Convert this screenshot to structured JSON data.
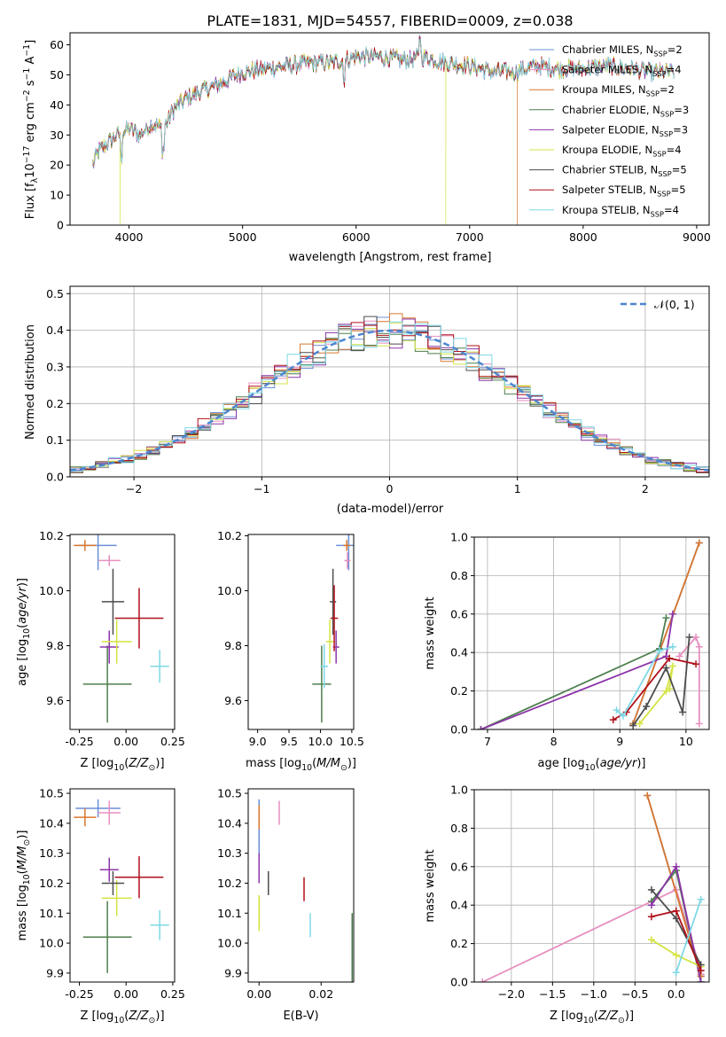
{
  "figure": {
    "title": "PLATE=1831, MJD=54557, FIBERID=0009, z=0.038"
  },
  "chart_data": [
    {
      "id": "spectrum",
      "type": "line",
      "xlabel": "wavelength [Angstrom, rest frame]",
      "ylabel": "Flux [f_λ 10^-17 erg cm^-2 s^-1 A^-1]",
      "xlim": [
        3480,
        9110
      ],
      "ylim": [
        0,
        64
      ],
      "xticks": [
        4000,
        5000,
        6000,
        7000,
        8000,
        9000
      ],
      "yticks": [
        0,
        10,
        20,
        30,
        40,
        50,
        60
      ],
      "grid": false,
      "legend_position": "upper-right",
      "colors": [
        "#6b8fd6",
        "#e78fbf",
        "#d9772e",
        "#4e7f4e",
        "#8c35a8",
        "#d4e342",
        "#4d4d4d",
        "#b0101a",
        "#7fd8e6"
      ],
      "series": [
        {
          "name": "Chabrier MILES, N_SSP=2"
        },
        {
          "name": "Salpeter MILES, N_SSP=4"
        },
        {
          "name": "Kroupa MILES, N_SSP=2",
          "cutoff_x": 7420
        },
        {
          "name": "Chabrier ELODIE, N_SSP=3"
        },
        {
          "name": "Salpeter ELODIE, N_SSP=3"
        },
        {
          "name": "Kroupa ELODIE, N_SSP=4",
          "dropouts_x": [
            3920,
            6790
          ]
        },
        {
          "name": "Chabrier STELIB, N_SSP=5"
        },
        {
          "name": "Salpeter STELIB, N_SSP=5"
        },
        {
          "name": "Kroupa STELIB, N_SSP=4"
        }
      ],
      "continuum": {
        "x": [
          3680,
          3720,
          3800,
          3900,
          4000,
          4100,
          4200,
          4300,
          4400,
          4500,
          4600,
          4800,
          5000,
          5200,
          5400,
          5600,
          5800,
          6000,
          6200,
          6400,
          6600,
          6800,
          7000,
          7200,
          7400,
          7600,
          7800,
          8000,
          8200,
          8400,
          8600,
          8800
        ],
        "y": [
          20,
          24,
          27,
          30,
          32,
          30,
          34,
          32,
          39,
          42,
          44,
          47,
          51,
          52,
          53,
          54,
          54,
          56,
          56,
          55,
          56,
          54,
          53,
          51,
          51,
          53,
          52,
          52,
          53,
          52,
          51,
          51
        ]
      }
    },
    {
      "id": "residuals",
      "type": "histogram",
      "xlabel": "(data-model)/error",
      "ylabel": "Normed distribution",
      "xlim": [
        -2.5,
        2.5
      ],
      "ylim": [
        0,
        0.52
      ],
      "xticks": [
        -2,
        -1,
        0,
        1,
        2
      ],
      "yticks": [
        0.0,
        0.1,
        0.2,
        0.3,
        0.4,
        0.5
      ],
      "grid": true,
      "legend_position": "upper-right",
      "legend": [
        "𝒩(0, 1)"
      ],
      "bin_width": 0.1
    },
    {
      "id": "age-vs-Z",
      "type": "scatter",
      "error_bars": true,
      "xlabel": "Z [log10(Z/Z☉)]",
      "ylabel": "age  [log10(age/yr)]",
      "xlim": [
        -0.3,
        0.26
      ],
      "ylim": [
        9.495,
        10.205
      ],
      "xticks": [
        -0.25,
        0.0,
        0.25
      ],
      "yticks": [
        9.6,
        9.8,
        10.0,
        10.2
      ],
      "grid": false,
      "points": [
        {
          "x": -0.15,
          "y": 10.165,
          "xerr": 0.1,
          "yerr": 0.09
        },
        {
          "x": -0.09,
          "y": 10.11,
          "xerr": 0.06,
          "yerr": 0.02
        },
        {
          "x": -0.22,
          "y": 10.165,
          "xerr": 0.06,
          "yerr": 0.02
        },
        {
          "x": -0.1,
          "y": 9.66,
          "xerr": 0.13,
          "yerr": 0.14
        },
        {
          "x": -0.09,
          "y": 9.795,
          "xerr": 0.05,
          "yerr": 0.06
        },
        {
          "x": -0.05,
          "y": 9.815,
          "xerr": 0.08,
          "yerr": 0.08
        },
        {
          "x": -0.07,
          "y": 9.96,
          "xerr": 0.06,
          "yerr": 0.12
        },
        {
          "x": 0.07,
          "y": 9.9,
          "xerr": 0.13,
          "yerr": 0.11
        },
        {
          "x": 0.18,
          "y": 9.725,
          "xerr": 0.05,
          "yerr": 0.06
        }
      ]
    },
    {
      "id": "age-vs-mass",
      "type": "scatter",
      "error_bars": true,
      "xlabel": "mass [log10(M/M☉)]",
      "ylabel": "",
      "xlim": [
        8.85,
        10.53
      ],
      "ylim": [
        9.495,
        10.205
      ],
      "xticks": [
        9.0,
        9.5,
        10.0,
        10.5
      ],
      "yticks": [
        9.6,
        9.8,
        10.0,
        10.2
      ],
      "grid": false,
      "points": [
        {
          "x": 10.45,
          "y": 10.165,
          "xerr": 0.2,
          "yerr": 0.09
        },
        {
          "x": 10.43,
          "y": 10.11,
          "xerr": 0.05,
          "yerr": 0.03
        },
        {
          "x": 10.42,
          "y": 10.165,
          "xerr": 0.05,
          "yerr": 0.02
        },
        {
          "x": 10.02,
          "y": 9.66,
          "xerr": 0.15,
          "yerr": 0.14
        },
        {
          "x": 10.25,
          "y": 9.795,
          "xerr": 0.05,
          "yerr": 0.06
        },
        {
          "x": 10.15,
          "y": 9.815,
          "xerr": 0.06,
          "yerr": 0.08
        },
        {
          "x": 10.2,
          "y": 9.96,
          "xerr": 0.05,
          "yerr": 0.12
        },
        {
          "x": 10.22,
          "y": 9.9,
          "xerr": 0.06,
          "yerr": 0.12
        },
        {
          "x": 10.06,
          "y": 9.725,
          "xerr": 0.06,
          "yerr": 0.08
        }
      ]
    },
    {
      "id": "weight-vs-age",
      "type": "line",
      "xlabel": "age  [log10(age/yr)]",
      "ylabel": "mass weight",
      "xlim": [
        6.8,
        10.35
      ],
      "ylim": [
        0,
        1
      ],
      "xticks": [
        7,
        8,
        9,
        10
      ],
      "yticks": [
        0.0,
        0.2,
        0.4,
        0.6,
        0.8,
        1.0
      ],
      "grid": true,
      "series": [
        {
          "x": [
            9.2,
            10.2
          ],
          "y": [
            0.03,
            0.97
          ]
        },
        {
          "x": [
            9.9,
            10.15,
            10.2,
            10.2
          ],
          "y": [
            0.38,
            0.48,
            0.43,
            0.03
          ]
        },
        {
          "x": [
            9.2,
            10.2
          ],
          "y": [
            0.03,
            0.97
          ]
        },
        {
          "x": [
            6.9,
            9.6,
            9.7
          ],
          "y": [
            0.0,
            0.42,
            0.58
          ]
        },
        {
          "x": [
            6.9,
            9.7,
            9.8
          ],
          "y": [
            0.0,
            0.38,
            0.6
          ]
        },
        {
          "x": [
            9.3,
            9.7,
            9.8,
            9.75
          ],
          "y": [
            0.03,
            0.2,
            0.33,
            0.21
          ]
        },
        {
          "x": [
            9.2,
            9.4,
            9.7,
            9.95,
            10.05
          ],
          "y": [
            0.02,
            0.12,
            0.32,
            0.09,
            0.48
          ]
        },
        {
          "x": [
            8.9,
            9.1,
            9.75,
            10.15
          ],
          "y": [
            0.05,
            0.09,
            0.37,
            0.34
          ]
        },
        {
          "x": [
            8.95,
            9.05,
            9.6,
            9.8
          ],
          "y": [
            0.1,
            0.07,
            0.41,
            0.43
          ]
        }
      ]
    },
    {
      "id": "mass-vs-Z",
      "type": "scatter",
      "error_bars": true,
      "xlabel": "Z [log10(Z/Z☉)]",
      "ylabel": "mass [log10(M/M☉)]",
      "xlim": [
        -0.3,
        0.26
      ],
      "ylim": [
        9.87,
        10.515
      ],
      "xticks": [
        -0.25,
        0.0,
        0.25
      ],
      "yticks": [
        9.9,
        10.0,
        10.1,
        10.2,
        10.3,
        10.4,
        10.5
      ],
      "grid": false,
      "points": [
        {
          "x": -0.15,
          "y": 10.45,
          "xerr": 0.12,
          "yerr": 0.03
        },
        {
          "x": -0.09,
          "y": 10.435,
          "xerr": 0.06,
          "yerr": 0.04
        },
        {
          "x": -0.22,
          "y": 10.42,
          "xerr": 0.06,
          "yerr": 0.03
        },
        {
          "x": -0.1,
          "y": 10.02,
          "xerr": 0.13,
          "yerr": 0.12
        },
        {
          "x": -0.09,
          "y": 10.245,
          "xerr": 0.05,
          "yerr": 0.04
        },
        {
          "x": -0.05,
          "y": 10.15,
          "xerr": 0.08,
          "yerr": 0.06
        },
        {
          "x": -0.07,
          "y": 10.2,
          "xerr": 0.06,
          "yerr": 0.04
        },
        {
          "x": 0.07,
          "y": 10.22,
          "xerr": 0.13,
          "yerr": 0.07
        },
        {
          "x": 0.18,
          "y": 10.06,
          "xerr": 0.05,
          "yerr": 0.05
        }
      ]
    },
    {
      "id": "mass-vs-EBV",
      "type": "scatter",
      "error_bars": true,
      "xlabel": "E(B-V)",
      "ylabel": "",
      "xlim": [
        -0.0035,
        0.0305
      ],
      "ylim": [
        9.87,
        10.515
      ],
      "xticks": [
        0.0,
        0.02
      ],
      "yticks": [
        9.9,
        10.0,
        10.1,
        10.2,
        10.3,
        10.4,
        10.5
      ],
      "grid": false,
      "points": [
        {
          "x": 0.0,
          "y": 10.38,
          "xerr": 0,
          "yerr": 0.1
        },
        {
          "x": 0.0065,
          "y": 10.435,
          "xerr": 0,
          "yerr": 0.04
        },
        {
          "x": 0.0,
          "y": 10.42,
          "xerr": 0,
          "yerr": 0.04
        },
        {
          "x": 0.03,
          "y": 9.94,
          "xerr": 0,
          "yerr": 0.16
        },
        {
          "x": 0.0,
          "y": 10.25,
          "xerr": 0,
          "yerr": 0.05
        },
        {
          "x": 0.0,
          "y": 10.1,
          "xerr": 0,
          "yerr": 0.06
        },
        {
          "x": 0.003,
          "y": 10.2,
          "xerr": 0,
          "yerr": 0.04
        },
        {
          "x": 0.0145,
          "y": 10.18,
          "xerr": 0,
          "yerr": 0.04
        },
        {
          "x": 0.0165,
          "y": 10.06,
          "xerr": 0,
          "yerr": 0.04
        }
      ]
    },
    {
      "id": "weight-vs-Z",
      "type": "line",
      "xlabel": "Z [log10(Z/Z☉)]",
      "ylabel": "mass weight",
      "xlim": [
        -2.45,
        0.4
      ],
      "ylim": [
        0,
        1
      ],
      "xticks": [
        -2.0,
        -1.5,
        -1.0,
        -0.5,
        0.0
      ],
      "yticks": [
        0.0,
        0.2,
        0.4,
        0.6,
        0.8,
        1.0
      ],
      "grid": true,
      "series": [
        {
          "x": [
            -0.35,
            0.3
          ],
          "y": [
            0.97,
            0.03
          ]
        },
        {
          "x": [
            -2.35,
            0.0,
            0.3,
            0.3
          ],
          "y": [
            0.0,
            0.48,
            0.06,
            0.04
          ]
        },
        {
          "x": [
            -0.35,
            0.3
          ],
          "y": [
            0.97,
            0.03
          ]
        },
        {
          "x": [
            -0.3,
            0.0,
            0.3
          ],
          "y": [
            0.42,
            0.58,
            0.0
          ]
        },
        {
          "x": [
            -0.3,
            0.0,
            0.3
          ],
          "y": [
            0.4,
            0.6,
            0.0
          ]
        },
        {
          "x": [
            -0.3,
            0.0,
            0.3
          ],
          "y": [
            0.22,
            0.14,
            0.08
          ]
        },
        {
          "x": [
            -0.3,
            0.0,
            0.3
          ],
          "y": [
            0.48,
            0.33,
            0.09
          ]
        },
        {
          "x": [
            -0.3,
            0.0,
            0.3
          ],
          "y": [
            0.34,
            0.37,
            0.06
          ]
        },
        {
          "x": [
            0.0,
            0.3
          ],
          "y": [
            0.05,
            0.43
          ]
        }
      ]
    }
  ]
}
